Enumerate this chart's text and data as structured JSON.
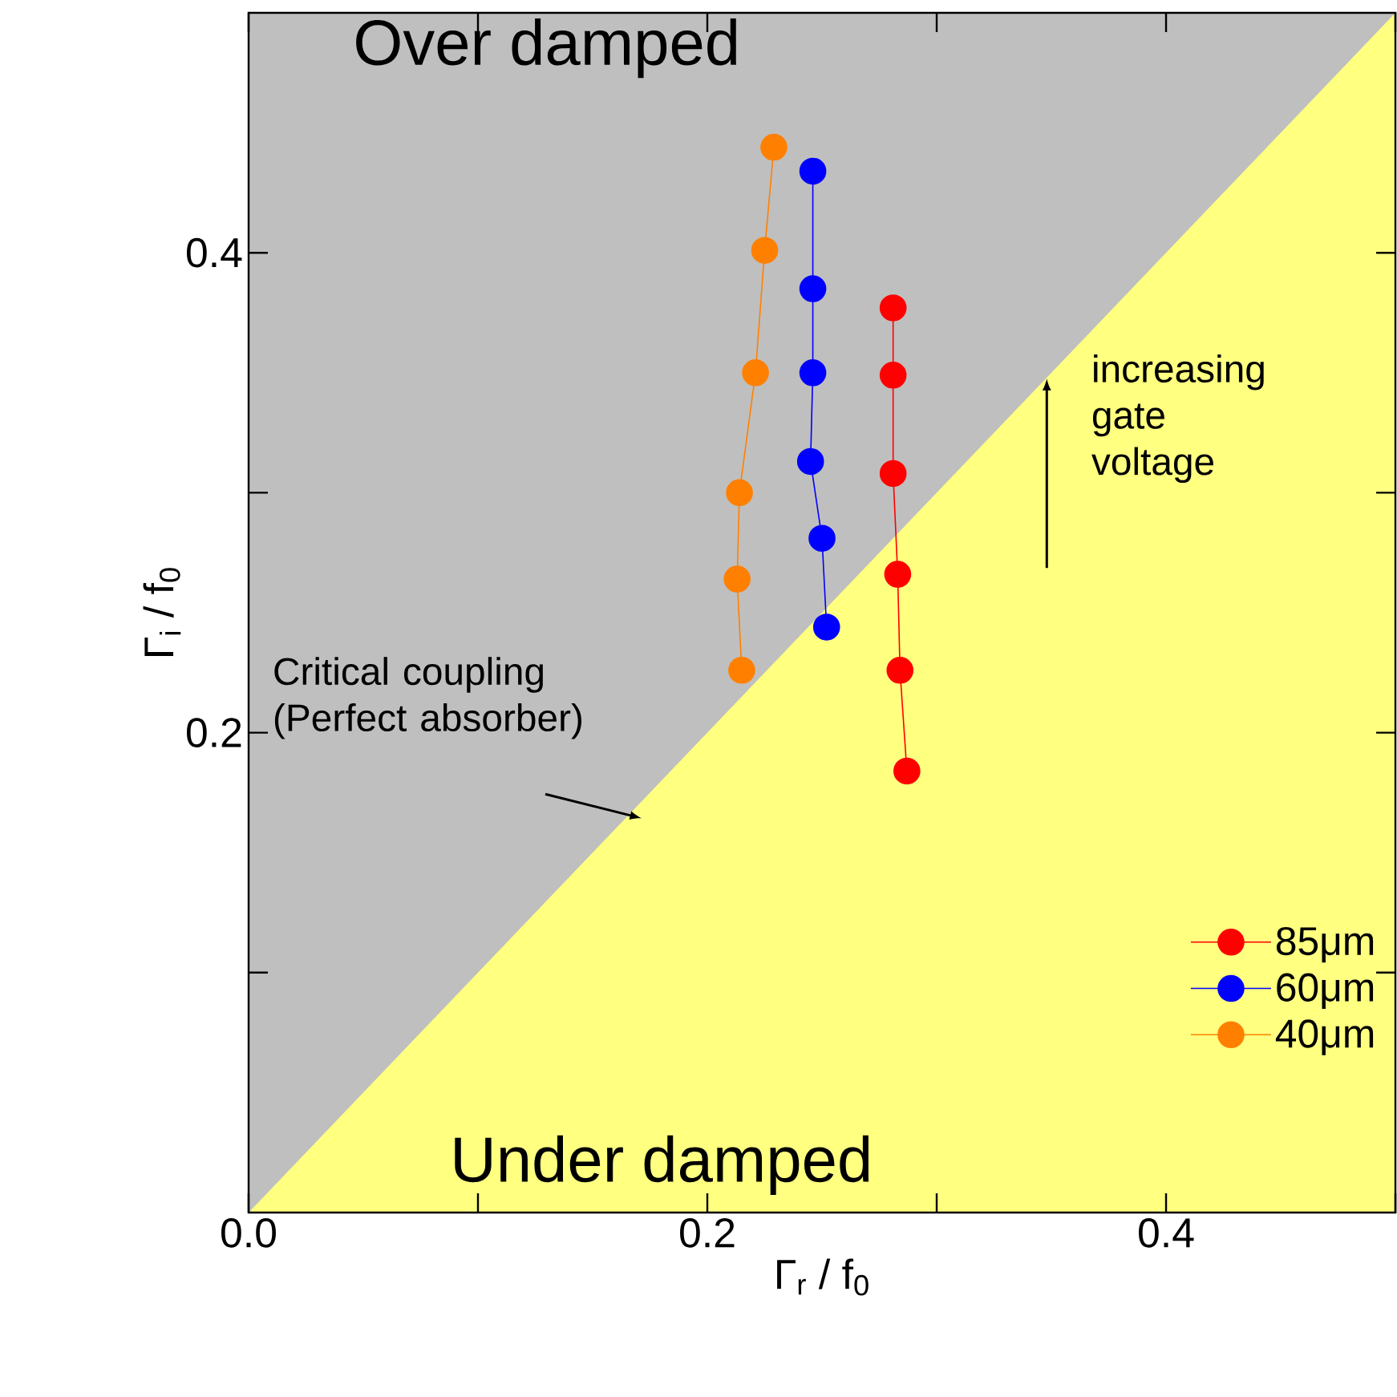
{
  "chart_data": {
    "type": "line",
    "xlabel": "Γ$_{r}$ / f$_{0}$",
    "ylabel": "Γ$_{i}$ / f$_{0}$",
    "xlim": [
      0,
      0.5
    ],
    "ylim": [
      0,
      0.5
    ],
    "xticks": [
      {
        "value": 0,
        "label": "0.0"
      },
      {
        "value": 0.1,
        "label": null
      },
      0.2,
      {
        "value": 0.3,
        "label": null
      },
      0.4,
      {
        "value": 0.5,
        "label": null
      }
    ],
    "yticks": [
      {
        "value": 0.1,
        "label": null
      },
      0.2,
      {
        "value": 0.3,
        "label": null
      },
      0.4
    ],
    "series": [
      {
        "type": "area",
        "color": "#ffff80",
        "x": [
          0,
          0.5
        ],
        "values": [
          0,
          0.5
        ]
      },
      {
        "name": "85μm",
        "color": "#ff0000",
        "marker": "circle",
        "x": [
          0.281,
          0.281,
          0.281,
          0.283,
          0.284,
          0.287
        ],
        "values": [
          0.377,
          0.349,
          0.308,
          0.266,
          0.226,
          0.184
        ]
      },
      {
        "name": "60μm",
        "color": "#0000ff",
        "marker": "circle",
        "x": [
          0.246,
          0.246,
          0.246,
          0.245,
          0.25,
          0.252
        ],
        "values": [
          0.434,
          0.385,
          0.35,
          0.313,
          0.281,
          0.244
        ]
      },
      {
        "name": "40μm",
        "color": "#ff8000",
        "marker": "circle",
        "x": [
          0.229,
          0.225,
          0.221,
          0.214,
          0.213,
          0.215
        ],
        "values": [
          0.444,
          0.401,
          0.35,
          0.3,
          0.264,
          0.226
        ]
      }
    ],
    "legend": "bottom right",
    "annotations": [
      "Over damped",
      "Under damped",
      "increasing gate voltage",
      "Critical coupling (Perfect absorber)"
    ]
  }
}
